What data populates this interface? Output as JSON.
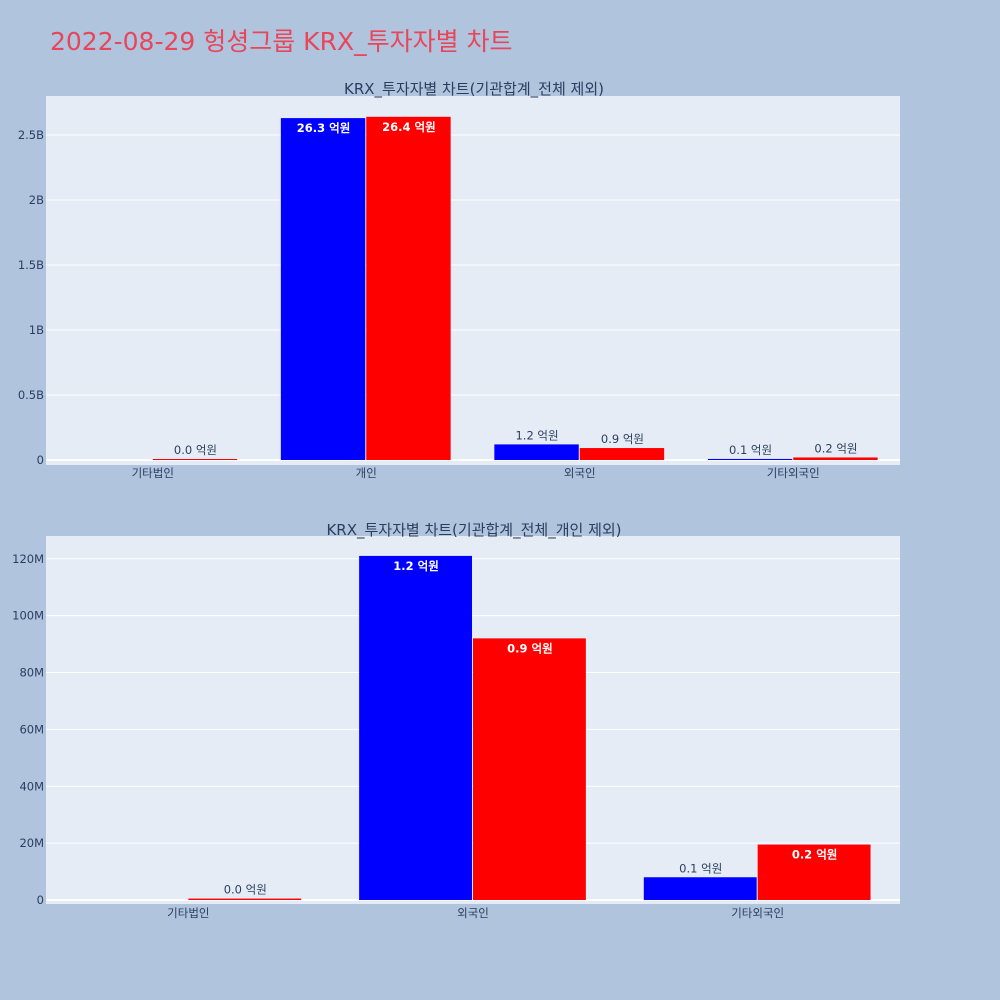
{
  "page": {
    "title": "2022-08-29 헝셩그룹 KRX_투자자별 차트",
    "background": "#b0c4de",
    "title_color": "#e8465a"
  },
  "chart_data": [
    {
      "type": "bar",
      "title": "KRX_투자자별 차트(기관합계_전체 제외)",
      "categories": [
        "기타법인",
        "개인",
        "외국인",
        "기타외국인"
      ],
      "series": [
        {
          "color": "#0000ff",
          "values": [
            0,
            2630000000,
            120000000,
            8000000
          ],
          "labels": [
            "",
            "26.3 억원",
            "1.2 억원",
            "0.1 억원"
          ]
        },
        {
          "color": "#ff0000",
          "values": [
            1500000,
            2640000000,
            92000000,
            19500000
          ],
          "labels": [
            "0.0 억원",
            "26.4 억원",
            "0.9 억원",
            "0.2 억원"
          ]
        }
      ],
      "ylim": [
        0,
        2800000000
      ],
      "yticks": [
        {
          "value": 0,
          "label": "0"
        },
        {
          "value": 500000000,
          "label": "0.5B"
        },
        {
          "value": 1000000000,
          "label": "1B"
        },
        {
          "value": 1500000000,
          "label": "1.5B"
        },
        {
          "value": 2000000000,
          "label": "2B"
        },
        {
          "value": 2500000000,
          "label": "2.5B"
        }
      ],
      "grid": true,
      "plot_bg": "#e5ecf6"
    },
    {
      "type": "bar",
      "title": "KRX_투자자별 차트(기관합계_전체_개인 제외)",
      "categories": [
        "기타법인",
        "외국인",
        "기타외국인"
      ],
      "series": [
        {
          "color": "#0000ff",
          "values": [
            0,
            121000000,
            8000000
          ],
          "labels": [
            "",
            "1.2 억원",
            "0.1 억원"
          ]
        },
        {
          "color": "#ff0000",
          "values": [
            500000,
            92000000,
            19500000
          ],
          "labels": [
            "0.0 억원",
            "0.9 억원",
            "0.2 억원"
          ]
        }
      ],
      "ylim": [
        0,
        128000000
      ],
      "yticks": [
        {
          "value": 0,
          "label": "0"
        },
        {
          "value": 20000000,
          "label": "20M"
        },
        {
          "value": 40000000,
          "label": "40M"
        },
        {
          "value": 60000000,
          "label": "60M"
        },
        {
          "value": 80000000,
          "label": "80M"
        },
        {
          "value": 100000000,
          "label": "100M"
        },
        {
          "value": 120000000,
          "label": "120M"
        }
      ],
      "grid": true,
      "plot_bg": "#e5ecf6"
    }
  ]
}
